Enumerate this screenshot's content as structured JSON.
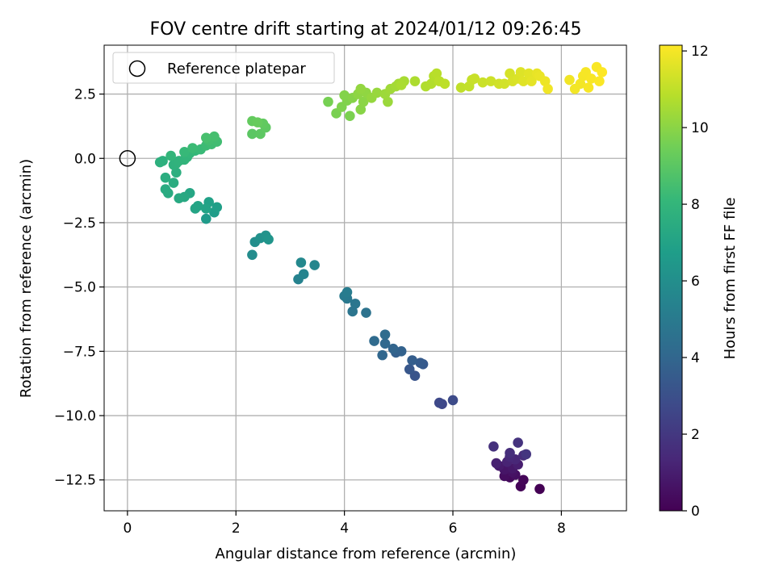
{
  "chart_data": {
    "type": "scatter",
    "title": "FOV centre drift starting at 2024/01/12 09:26:45",
    "xlabel": "Angular distance from reference (arcmin)",
    "ylabel": "Rotation from reference (arcmin)",
    "xlim": [
      -0.43,
      9.2
    ],
    "ylim": [
      -13.7,
      4.4
    ],
    "xticks": [
      0,
      2,
      4,
      6,
      8
    ],
    "xtick_labels": [
      "0",
      "2",
      "4",
      "6",
      "8"
    ],
    "yticks": [
      2.5,
      0.0,
      -2.5,
      -5.0,
      -7.5,
      -10.0,
      -12.5
    ],
    "ytick_labels": [
      "2.5",
      "0.0",
      "−2.5",
      "−5.0",
      "−7.5",
      "−10.0",
      "−12.5"
    ],
    "grid": true,
    "legend": {
      "position": "top-left",
      "entries": [
        {
          "label": "Reference platepar",
          "marker": "open-circle"
        }
      ]
    },
    "reference_point": {
      "x": 0.0,
      "y": 0.0
    },
    "colorbar": {
      "label": "Hours from first FF file",
      "range": [
        0,
        12.15
      ],
      "ticks": [
        0,
        2,
        4,
        6,
        8,
        10,
        12
      ],
      "tick_labels": [
        "0",
        "2",
        "4",
        "6",
        "8",
        "10",
        "12"
      ],
      "colormap": "viridis",
      "colors": [
        "#440154",
        "#482878",
        "#3e4989",
        "#31688e",
        "#26828e",
        "#1f9e89",
        "#35b779",
        "#6ece58",
        "#b5de2b",
        "#fde725"
      ]
    },
    "points": [
      [
        7.6,
        -12.85,
        0.0
      ],
      [
        7.25,
        -12.75,
        0.1
      ],
      [
        7.3,
        -12.5,
        0.2
      ],
      [
        7.05,
        -12.4,
        0.3
      ],
      [
        6.95,
        -12.35,
        0.4
      ],
      [
        7.15,
        -12.3,
        0.5
      ],
      [
        7.1,
        -12.2,
        0.6
      ],
      [
        6.95,
        -12.1,
        0.7
      ],
      [
        7.1,
        -12.05,
        0.8
      ],
      [
        6.85,
        -11.95,
        0.9
      ],
      [
        7.2,
        -11.9,
        1.0
      ],
      [
        6.8,
        -11.85,
        1.1
      ],
      [
        7.0,
        -11.8,
        1.2
      ],
      [
        7.15,
        -11.7,
        1.3
      ],
      [
        7.05,
        -11.6,
        1.4
      ],
      [
        7.3,
        -11.55,
        1.5
      ],
      [
        7.05,
        -11.45,
        1.6
      ],
      [
        6.75,
        -11.2,
        1.7
      ],
      [
        7.2,
        -11.05,
        1.8
      ],
      [
        7.35,
        -11.5,
        1.9
      ],
      [
        5.8,
        -9.55,
        2.6
      ],
      [
        5.75,
        -9.5,
        2.7
      ],
      [
        6.0,
        -9.4,
        2.8
      ],
      [
        5.3,
        -8.45,
        3.2
      ],
      [
        5.2,
        -8.2,
        3.3
      ],
      [
        5.45,
        -8.0,
        3.4
      ],
      [
        5.4,
        -7.95,
        3.5
      ],
      [
        5.25,
        -7.85,
        3.6
      ],
      [
        4.95,
        -7.55,
        3.7
      ],
      [
        5.05,
        -7.5,
        3.8
      ],
      [
        4.9,
        -7.4,
        3.9
      ],
      [
        4.7,
        -7.65,
        4.0
      ],
      [
        4.75,
        -7.2,
        4.1
      ],
      [
        4.55,
        -7.1,
        4.2
      ],
      [
        4.75,
        -6.85,
        4.3
      ],
      [
        4.4,
        -6.0,
        4.6
      ],
      [
        4.15,
        -5.95,
        4.7
      ],
      [
        4.2,
        -5.65,
        4.8
      ],
      [
        4.05,
        -5.45,
        4.9
      ],
      [
        4.0,
        -5.35,
        5.0
      ],
      [
        4.05,
        -5.2,
        5.1
      ],
      [
        3.15,
        -4.7,
        5.4
      ],
      [
        3.25,
        -4.5,
        5.5
      ],
      [
        3.45,
        -4.15,
        5.6
      ],
      [
        3.2,
        -4.05,
        5.7
      ],
      [
        2.3,
        -3.75,
        5.9
      ],
      [
        2.35,
        -3.25,
        6.0
      ],
      [
        2.45,
        -3.1,
        6.1
      ],
      [
        2.55,
        -3.0,
        6.2
      ],
      [
        2.6,
        -3.15,
        6.3
      ],
      [
        1.45,
        -2.35,
        6.6
      ],
      [
        1.6,
        -2.1,
        6.7
      ],
      [
        1.65,
        -1.9,
        6.8
      ],
      [
        1.5,
        -1.7,
        6.9
      ],
      [
        1.45,
        -1.95,
        7.0
      ],
      [
        1.3,
        -1.85,
        7.05
      ],
      [
        1.25,
        -1.95,
        7.1
      ],
      [
        1.15,
        -1.35,
        7.2
      ],
      [
        1.05,
        -1.5,
        7.3
      ],
      [
        0.95,
        -1.55,
        7.35
      ],
      [
        0.75,
        -1.35,
        7.4
      ],
      [
        0.7,
        -1.2,
        7.45
      ],
      [
        0.85,
        -0.95,
        7.5
      ],
      [
        0.7,
        -0.75,
        7.55
      ],
      [
        0.9,
        -0.55,
        7.6
      ],
      [
        0.6,
        -0.15,
        7.65
      ],
      [
        0.65,
        -0.1,
        7.7
      ],
      [
        0.85,
        -0.25,
        7.75
      ],
      [
        0.9,
        -0.2,
        7.8
      ],
      [
        0.95,
        -0.1,
        7.85
      ],
      [
        1.05,
        -0.05,
        7.9
      ],
      [
        1.1,
        0.05,
        7.95
      ],
      [
        0.8,
        0.1,
        8.0
      ],
      [
        1.15,
        0.2,
        8.05
      ],
      [
        1.25,
        0.3,
        8.1
      ],
      [
        1.05,
        0.25,
        8.15
      ],
      [
        1.35,
        0.35,
        8.2
      ],
      [
        1.2,
        0.4,
        8.25
      ],
      [
        1.45,
        0.5,
        8.3
      ],
      [
        1.55,
        0.55,
        8.35
      ],
      [
        1.65,
        0.65,
        8.4
      ],
      [
        1.5,
        0.7,
        8.45
      ],
      [
        1.6,
        0.85,
        8.5
      ],
      [
        1.45,
        0.8,
        8.55
      ],
      [
        2.3,
        0.95,
        9.0
      ],
      [
        2.45,
        0.95,
        9.05
      ],
      [
        2.55,
        1.2,
        9.1
      ],
      [
        2.5,
        1.35,
        9.15
      ],
      [
        2.3,
        1.45,
        9.2
      ],
      [
        2.4,
        1.4,
        9.25
      ],
      [
        3.7,
        2.2,
        9.6
      ],
      [
        3.85,
        1.75,
        9.65
      ],
      [
        4.1,
        1.65,
        9.7
      ],
      [
        3.95,
        2.0,
        9.75
      ],
      [
        4.05,
        2.25,
        9.8
      ],
      [
        4.0,
        2.45,
        9.85
      ],
      [
        4.15,
        2.35,
        9.9
      ],
      [
        4.3,
        1.9,
        9.95
      ],
      [
        4.35,
        2.2,
        10.0
      ],
      [
        4.25,
        2.5,
        10.05
      ],
      [
        4.4,
        2.55,
        10.1
      ],
      [
        4.3,
        2.7,
        10.15
      ],
      [
        4.5,
        2.35,
        10.2
      ],
      [
        4.6,
        2.55,
        10.25
      ],
      [
        4.8,
        2.2,
        10.3
      ],
      [
        4.75,
        2.5,
        10.35
      ],
      [
        4.85,
        2.7,
        10.4
      ],
      [
        4.95,
        2.8,
        10.45
      ],
      [
        5.0,
        2.9,
        10.5
      ],
      [
        5.1,
        3.0,
        10.55
      ],
      [
        5.05,
        2.85,
        10.6
      ],
      [
        5.3,
        3.0,
        10.65
      ],
      [
        5.5,
        2.8,
        10.7
      ],
      [
        5.6,
        2.9,
        10.75
      ],
      [
        5.65,
        3.2,
        10.8
      ],
      [
        5.7,
        3.3,
        10.85
      ],
      [
        5.75,
        3.0,
        10.9
      ],
      [
        5.85,
        2.9,
        10.95
      ],
      [
        6.15,
        2.75,
        11.0
      ],
      [
        6.3,
        2.8,
        11.05
      ],
      [
        6.35,
        3.05,
        11.1
      ],
      [
        6.4,
        3.1,
        11.15
      ],
      [
        6.55,
        2.95,
        11.2
      ],
      [
        6.7,
        3.0,
        11.25
      ],
      [
        6.85,
        2.9,
        11.3
      ],
      [
        6.95,
        2.9,
        11.35
      ],
      [
        7.05,
        3.3,
        11.4
      ],
      [
        7.1,
        3.0,
        11.45
      ],
      [
        7.2,
        3.1,
        11.5
      ],
      [
        7.25,
        3.35,
        11.55
      ],
      [
        7.3,
        3.0,
        11.6
      ],
      [
        7.4,
        3.3,
        11.65
      ],
      [
        7.45,
        3.0,
        11.7
      ],
      [
        7.55,
        3.3,
        11.75
      ],
      [
        7.6,
        3.2,
        11.8
      ],
      [
        7.7,
        3.0,
        11.85
      ],
      [
        7.75,
        2.7,
        11.9
      ],
      [
        8.15,
        3.05,
        11.92
      ],
      [
        8.25,
        2.7,
        11.95
      ],
      [
        8.35,
        2.9,
        11.97
      ],
      [
        8.4,
        3.2,
        12.0
      ],
      [
        8.45,
        3.35,
        12.02
      ],
      [
        8.5,
        2.75,
        12.04
      ],
      [
        8.55,
        3.1,
        12.06
      ],
      [
        8.65,
        3.55,
        12.08
      ],
      [
        8.7,
        3.0,
        12.1
      ],
      [
        8.75,
        3.35,
        12.15
      ]
    ]
  }
}
